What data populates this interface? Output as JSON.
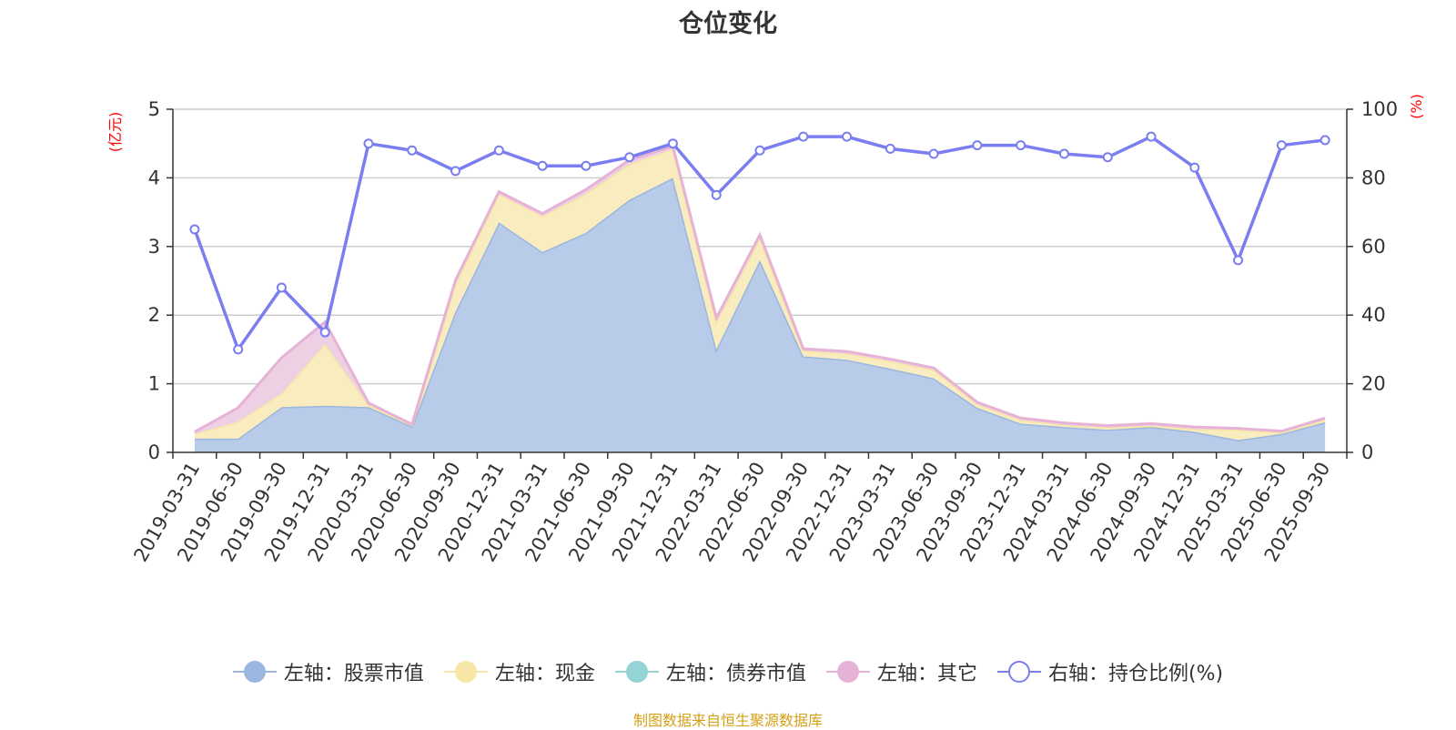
{
  "title": "仓位变化",
  "footer": "制图数据来自恒生聚源数据库",
  "chart_data": {
    "type": "area",
    "title": "仓位变化",
    "left_axis": {
      "unit": "(亿元)",
      "ylim": [
        0,
        5
      ],
      "ticks": [
        "0",
        "1",
        "2",
        "3",
        "4",
        "5"
      ]
    },
    "right_axis": {
      "unit": "(%)",
      "ylim": [
        0,
        100
      ],
      "ticks": [
        "0",
        "20",
        "40",
        "60",
        "80",
        "100"
      ]
    },
    "x_labels": [
      "2019-03-31",
      "2019-06-30",
      "2019-09-30",
      "2019-12-31",
      "2020-03-31",
      "2020-06-30",
      "2020-09-30",
      "2020-12-31",
      "2021-03-31",
      "2021-06-30",
      "2021-09-30",
      "2021-12-31",
      "2022-03-31",
      "2022-06-30",
      "2022-09-30",
      "2022-12-31",
      "2023-03-31",
      "2023-06-30",
      "2023-09-30",
      "2023-12-31",
      "2024-03-31",
      "2024-06-30",
      "2024-09-30",
      "2024-12-31",
      "2025-03-31",
      "2025-06-30",
      "2025-09-30"
    ],
    "grid": true,
    "legend_position": "bottom",
    "series": [
      {
        "name": "左轴：股票市值",
        "axis": "left",
        "kind": "stacked-area",
        "color": "#9bb6e0",
        "fill": "#b8cbe9",
        "values": [
          0.2,
          0.2,
          0.66,
          0.68,
          0.66,
          0.38,
          2.05,
          3.35,
          2.92,
          3.2,
          3.68,
          4.0,
          1.5,
          2.8,
          1.4,
          1.35,
          1.22,
          1.08,
          0.65,
          0.42,
          0.37,
          0.33,
          0.37,
          0.3,
          0.18,
          0.27,
          0.44
        ]
      },
      {
        "name": "左轴：现金",
        "axis": "left",
        "kind": "stacked-area",
        "color": "#f7e7a6",
        "fill": "#f9ecbe",
        "values": [
          0.07,
          0.25,
          0.2,
          0.9,
          0.03,
          0.02,
          0.4,
          0.41,
          0.52,
          0.57,
          0.52,
          0.42,
          0.4,
          0.31,
          0.08,
          0.09,
          0.11,
          0.12,
          0.05,
          0.05,
          0.03,
          0.03,
          0.02,
          0.04,
          0.15,
          0.02,
          0.03
        ]
      },
      {
        "name": "左轴：债券市值",
        "axis": "left",
        "kind": "stacked-area",
        "color": "#95d4d6",
        "fill": "#bfe4e5",
        "values": [
          0,
          0,
          0,
          0,
          0,
          0,
          0,
          0,
          0,
          0,
          0,
          0,
          0,
          0,
          0,
          0,
          0,
          0,
          0,
          0,
          0,
          0,
          0,
          0,
          0,
          0,
          0
        ]
      },
      {
        "name": "左轴：其它",
        "axis": "left",
        "kind": "stacked-area",
        "color": "#e6b2d6",
        "fill": "#eed0e4",
        "values": [
          0.03,
          0.2,
          0.52,
          0.32,
          0.03,
          0.01,
          0.06,
          0.04,
          0.04,
          0.06,
          0.06,
          0.04,
          0.06,
          0.06,
          0.03,
          0.03,
          0.03,
          0.03,
          0.03,
          0.03,
          0.03,
          0.03,
          0.03,
          0.03,
          0.02,
          0.02,
          0.03
        ]
      },
      {
        "name": "右轴：持仓比例(%)",
        "axis": "right",
        "kind": "line",
        "color": "#7b7ef0",
        "values": [
          65,
          30,
          48,
          35,
          90,
          88,
          82,
          88,
          83.5,
          83.5,
          86,
          90,
          75,
          88,
          92,
          92,
          88.5,
          87,
          89.5,
          89.5,
          87,
          86,
          92,
          83,
          56,
          89.5,
          91
        ]
      }
    ]
  }
}
